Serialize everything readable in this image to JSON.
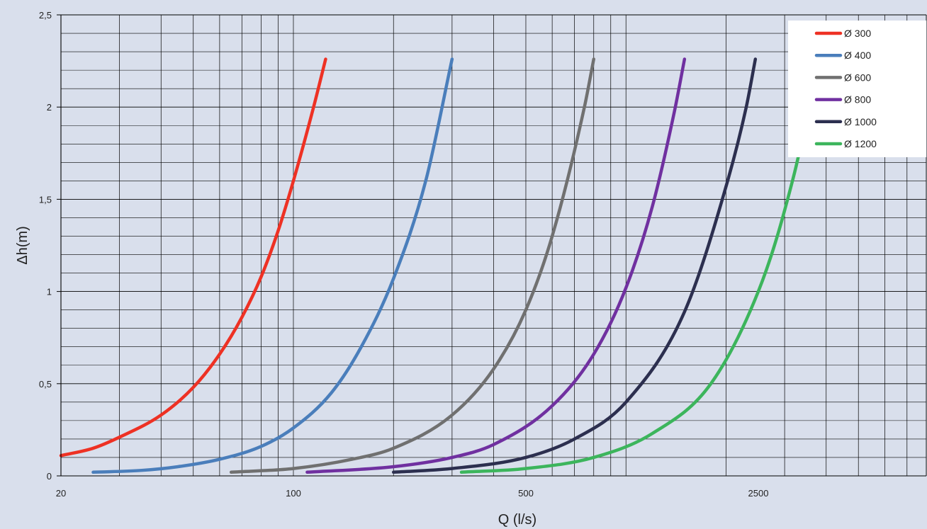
{
  "chart_data": {
    "type": "line",
    "title": "",
    "xlabel": "Q (l/s)",
    "ylabel": "Δh(m)",
    "x_scale": "log",
    "xlim": [
      20,
      8000
    ],
    "ylim": [
      0,
      2.5
    ],
    "x_tick_labels": [
      {
        "value": 20,
        "label": "20"
      },
      {
        "value": 100,
        "label": "100"
      },
      {
        "value": 500,
        "label": "500"
      },
      {
        "value": 2500,
        "label": "2500"
      }
    ],
    "y_tick_labels": [
      {
        "value": 0,
        "label": "0"
      },
      {
        "value": 0.5,
        "label": "0,5"
      },
      {
        "value": 1,
        "label": "1"
      },
      {
        "value": 1.5,
        "label": "1,5"
      },
      {
        "value": 2,
        "label": "2"
      },
      {
        "value": 2.5,
        "label": "2,5"
      }
    ],
    "grid": true,
    "legend_position": "top-right",
    "series": [
      {
        "name": "Ø 300",
        "color": "#ee3124",
        "points": [
          [
            20,
            0.11
          ],
          [
            25,
            0.15
          ],
          [
            30,
            0.21
          ],
          [
            40,
            0.33
          ],
          [
            50,
            0.48
          ],
          [
            60,
            0.66
          ],
          [
            70,
            0.86
          ],
          [
            80,
            1.08
          ],
          [
            90,
            1.33
          ],
          [
            100,
            1.6
          ],
          [
            115,
            2.0
          ],
          [
            125,
            2.26
          ]
        ]
      },
      {
        "name": "Ø 400",
        "color": "#4a7ebb",
        "points": [
          [
            25,
            0.02
          ],
          [
            35,
            0.03
          ],
          [
            45,
            0.05
          ],
          [
            60,
            0.09
          ],
          [
            80,
            0.16
          ],
          [
            100,
            0.26
          ],
          [
            130,
            0.45
          ],
          [
            160,
            0.7
          ],
          [
            200,
            1.07
          ],
          [
            250,
            1.6
          ],
          [
            300,
            2.26
          ]
        ]
      },
      {
        "name": "Ø 600",
        "color": "#707070",
        "points": [
          [
            65,
            0.02
          ],
          [
            100,
            0.04
          ],
          [
            150,
            0.09
          ],
          [
            200,
            0.15
          ],
          [
            300,
            0.33
          ],
          [
            400,
            0.58
          ],
          [
            500,
            0.9
          ],
          [
            600,
            1.3
          ],
          [
            750,
            2.0
          ],
          [
            800,
            2.26
          ]
        ]
      },
      {
        "name": "Ø 800",
        "color": "#7030a0",
        "points": [
          [
            110,
            0.02
          ],
          [
            200,
            0.05
          ],
          [
            300,
            0.1
          ],
          [
            400,
            0.17
          ],
          [
            600,
            0.38
          ],
          [
            800,
            0.66
          ],
          [
            1000,
            1.02
          ],
          [
            1200,
            1.46
          ],
          [
            1400,
            1.98
          ],
          [
            1500,
            2.26
          ]
        ]
      },
      {
        "name": "Ø 1000",
        "color": "#2c2f4f",
        "points": [
          [
            200,
            0.02
          ],
          [
            300,
            0.04
          ],
          [
            500,
            0.1
          ],
          [
            700,
            0.2
          ],
          [
            1000,
            0.4
          ],
          [
            1500,
            0.89
          ],
          [
            2000,
            1.57
          ],
          [
            2300,
            2.0
          ],
          [
            2450,
            2.26
          ]
        ]
      },
      {
        "name": "Ø 1200",
        "color": "#3cb55c",
        "points": [
          [
            320,
            0.02
          ],
          [
            500,
            0.04
          ],
          [
            800,
            0.1
          ],
          [
            1200,
            0.23
          ],
          [
            1800,
            0.5
          ],
          [
            2500,
            1.0
          ],
          [
            3000,
            1.44
          ],
          [
            3500,
            1.96
          ],
          [
            3700,
            2.26
          ]
        ]
      }
    ]
  }
}
